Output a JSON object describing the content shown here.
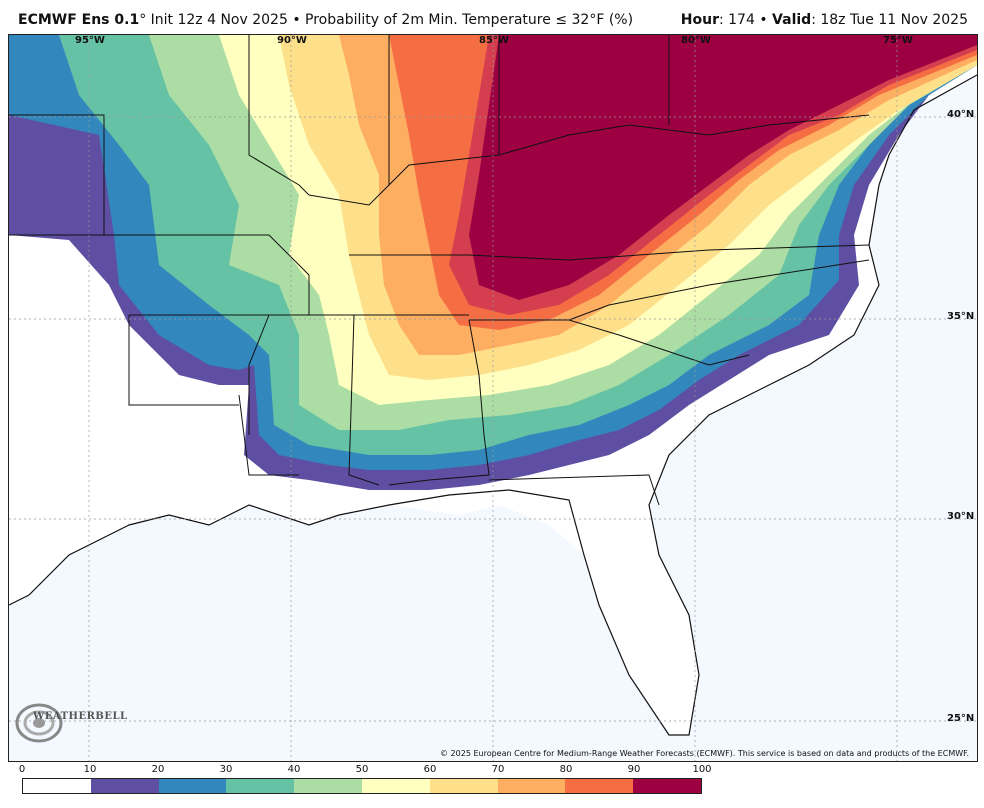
{
  "header": {
    "model": "ECMWF Ens 0.1",
    "deg": "°",
    "init": "Init 12z 4 Nov 2025",
    "bullet": "•",
    "product": "Probability of 2m Min. Temperature",
    "le": "≤",
    "threshold": "32",
    "unit": "°F (%)",
    "hour_label": "Hour",
    "hour_value": ": 174",
    "valid_label": "Valid",
    "valid_value": ": 18z Tue 11 Nov 2025"
  },
  "map": {
    "lat_labels": [
      "40°N",
      "35°N",
      "30°N",
      "25°N"
    ],
    "lon_labels": [
      "95°W",
      "90°W",
      "85°W",
      "80°W",
      "75°W"
    ],
    "copyright": "© 2025 European Centre for Medium-Range Weather Forecasts (ECMWF). This service is based on data and products of the ECMWF.",
    "logo": "WEATHERBELL",
    "background_color": "#f4f8ff"
  },
  "colorbar": {
    "ticks": [
      "0",
      "10",
      "20",
      "30",
      "40",
      "50",
      "60",
      "70",
      "80",
      "90",
      "100"
    ],
    "colors": [
      "#ffffff",
      "#5e4fa2",
      "#3288bd",
      "#66c2a5",
      "#abdda4",
      "#ffffbf",
      "#fee08b",
      "#fdae61",
      "#f46d43",
      "#d53e4f",
      "#9e0142"
    ]
  }
}
